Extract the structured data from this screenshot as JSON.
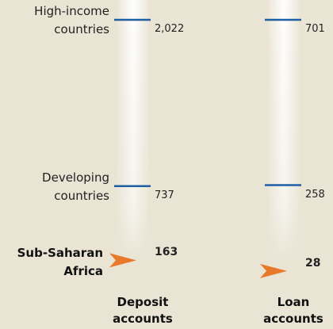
{
  "chart_data": {
    "type": "marker",
    "categories": [
      "High-income countries",
      "Developing countries",
      "Sub-Saharan Africa"
    ],
    "series": [
      {
        "name": "Deposit accounts",
        "color": "#1f5fa6",
        "values": [
          2022,
          737,
          163
        ],
        "value_labels": [
          "2,022",
          "737",
          "163"
        ]
      },
      {
        "name": "Loan accounts",
        "color": "#1f5fa6",
        "values": [
          701,
          258,
          28
        ],
        "value_labels": [
          "701",
          "258",
          "28"
        ]
      }
    ],
    "highlight_color": "#e8782a"
  }
}
